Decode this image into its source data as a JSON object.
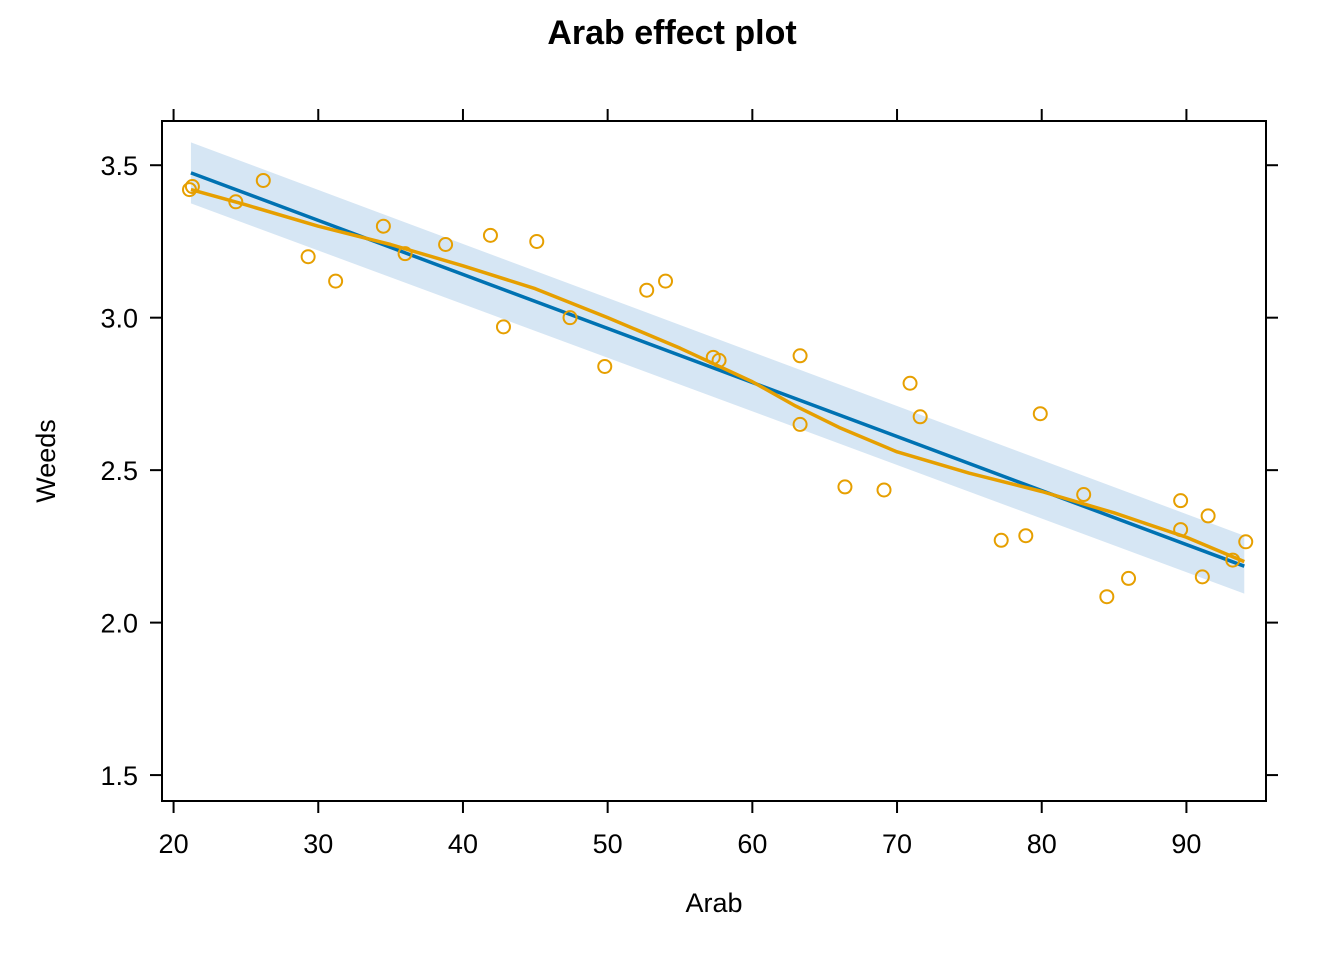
{
  "chart_data": {
    "type": "scatter",
    "title": "Arab effect plot",
    "xlabel": "Arab",
    "ylabel": "Weeds",
    "xlim": [
      19.2,
      95.5
    ],
    "ylim": [
      1.415,
      3.645
    ],
    "xticks": [
      20,
      30,
      40,
      50,
      60,
      70,
      80,
      90
    ],
    "yticks": [
      1.5,
      2.0,
      2.5,
      3.0,
      3.5
    ],
    "xtick_labels": [
      "20",
      "30",
      "40",
      "50",
      "60",
      "70",
      "80",
      "90"
    ],
    "ytick_labels": [
      "1.5",
      "2.0",
      "2.5",
      "3.0",
      "3.5"
    ],
    "grid": false,
    "colors": {
      "fit_line": "#0072b2",
      "confidence_band": "#d6e6f4",
      "smooth_line": "#e69f00",
      "points": "#e69f00",
      "frame": "#000000"
    },
    "fit": {
      "x": [
        21.2,
        94.0
      ],
      "y": [
        3.475,
        2.185
      ]
    },
    "confidence_band": {
      "x": [
        21.2,
        94.0
      ],
      "lower": [
        3.375,
        2.095
      ],
      "upper": [
        3.575,
        2.285
      ]
    },
    "smooth": {
      "x": [
        21.2,
        25,
        30,
        35,
        40,
        45,
        50,
        55,
        60,
        63,
        66,
        70,
        75,
        80,
        85,
        90,
        94
      ],
      "y": [
        3.42,
        3.37,
        3.3,
        3.24,
        3.17,
        3.095,
        3.0,
        2.9,
        2.79,
        2.71,
        2.64,
        2.56,
        2.49,
        2.43,
        2.36,
        2.28,
        2.2
      ]
    },
    "points": [
      {
        "x": 21.1,
        "y": 3.42
      },
      {
        "x": 21.3,
        "y": 3.43
      },
      {
        "x": 24.3,
        "y": 3.38
      },
      {
        "x": 26.2,
        "y": 3.45
      },
      {
        "x": 29.3,
        "y": 3.2
      },
      {
        "x": 31.2,
        "y": 3.12
      },
      {
        "x": 34.5,
        "y": 3.3
      },
      {
        "x": 36.0,
        "y": 3.21
      },
      {
        "x": 38.8,
        "y": 3.24
      },
      {
        "x": 41.9,
        "y": 3.27
      },
      {
        "x": 42.8,
        "y": 2.97
      },
      {
        "x": 45.1,
        "y": 3.25
      },
      {
        "x": 47.4,
        "y": 3.0
      },
      {
        "x": 49.8,
        "y": 2.84
      },
      {
        "x": 52.7,
        "y": 3.09
      },
      {
        "x": 54.0,
        "y": 3.12
      },
      {
        "x": 57.3,
        "y": 2.87
      },
      {
        "x": 57.7,
        "y": 2.86
      },
      {
        "x": 63.3,
        "y": 2.875
      },
      {
        "x": 63.3,
        "y": 2.65
      },
      {
        "x": 66.4,
        "y": 2.445
      },
      {
        "x": 69.1,
        "y": 2.435
      },
      {
        "x": 70.9,
        "y": 2.785
      },
      {
        "x": 71.6,
        "y": 2.675
      },
      {
        "x": 77.2,
        "y": 2.27
      },
      {
        "x": 78.9,
        "y": 2.285
      },
      {
        "x": 79.9,
        "y": 2.685
      },
      {
        "x": 82.9,
        "y": 2.42
      },
      {
        "x": 84.5,
        "y": 2.085
      },
      {
        "x": 86.0,
        "y": 2.145
      },
      {
        "x": 89.6,
        "y": 2.4
      },
      {
        "x": 89.6,
        "y": 2.305
      },
      {
        "x": 91.1,
        "y": 2.15
      },
      {
        "x": 91.5,
        "y": 2.35
      },
      {
        "x": 93.2,
        "y": 2.205
      },
      {
        "x": 94.1,
        "y": 2.265
      }
    ]
  }
}
